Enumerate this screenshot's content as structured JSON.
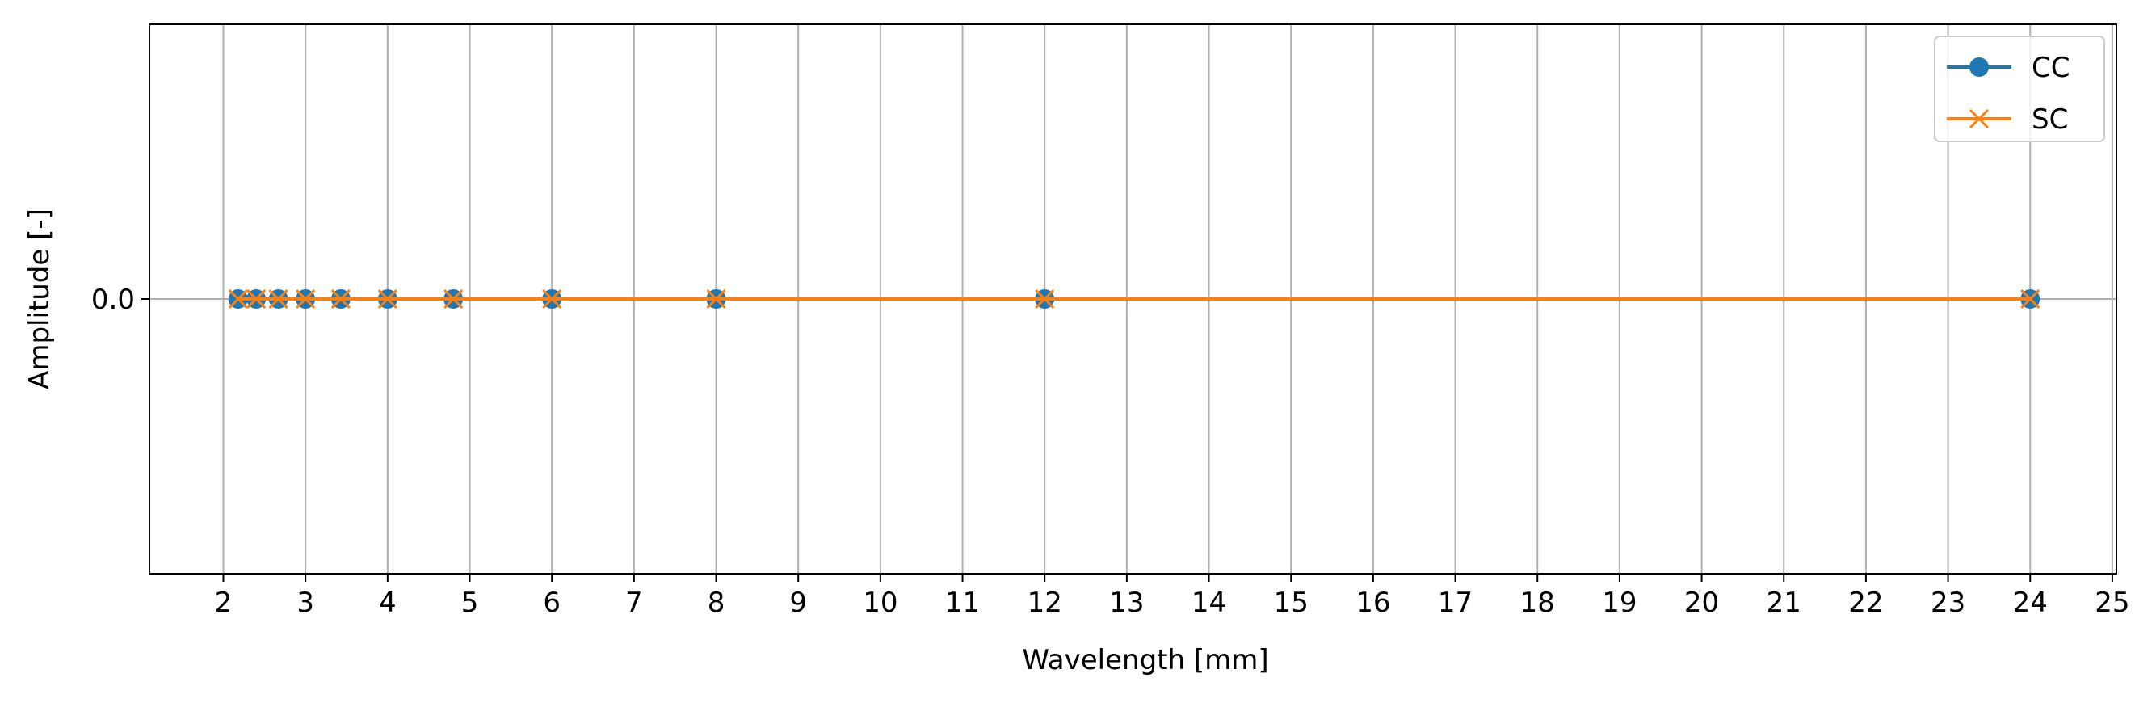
{
  "chart_data": {
    "type": "line",
    "title": "",
    "xlabel": "Wavelength [mm]",
    "ylabel": "Amplitude [-]",
    "xlim": [
      1.1,
      25.05
    ],
    "ylim": [
      -0.055,
      0.055
    ],
    "xticks": [
      2,
      3,
      4,
      5,
      6,
      7,
      8,
      9,
      10,
      11,
      12,
      13,
      14,
      15,
      16,
      17,
      18,
      19,
      20,
      21,
      22,
      23,
      24,
      25
    ],
    "yticks": [
      0.0
    ],
    "ytick_labels": [
      "0.0"
    ],
    "grid": true,
    "legend_position": "top-right",
    "x": [
      2.18,
      2.4,
      2.67,
      3.0,
      3.43,
      4.0,
      4.8,
      6.0,
      8.0,
      12.0,
      24.0
    ],
    "series": [
      {
        "name": "CC",
        "marker": "circle",
        "color": "#1f77b4",
        "values": [
          0,
          0,
          0,
          0,
          0,
          0,
          0,
          0,
          0,
          0,
          0
        ]
      },
      {
        "name": "SC",
        "marker": "x",
        "color": "#ff7f0e",
        "values": [
          0,
          0,
          0,
          0,
          0,
          0,
          0,
          0,
          0,
          0,
          0
        ]
      }
    ]
  }
}
